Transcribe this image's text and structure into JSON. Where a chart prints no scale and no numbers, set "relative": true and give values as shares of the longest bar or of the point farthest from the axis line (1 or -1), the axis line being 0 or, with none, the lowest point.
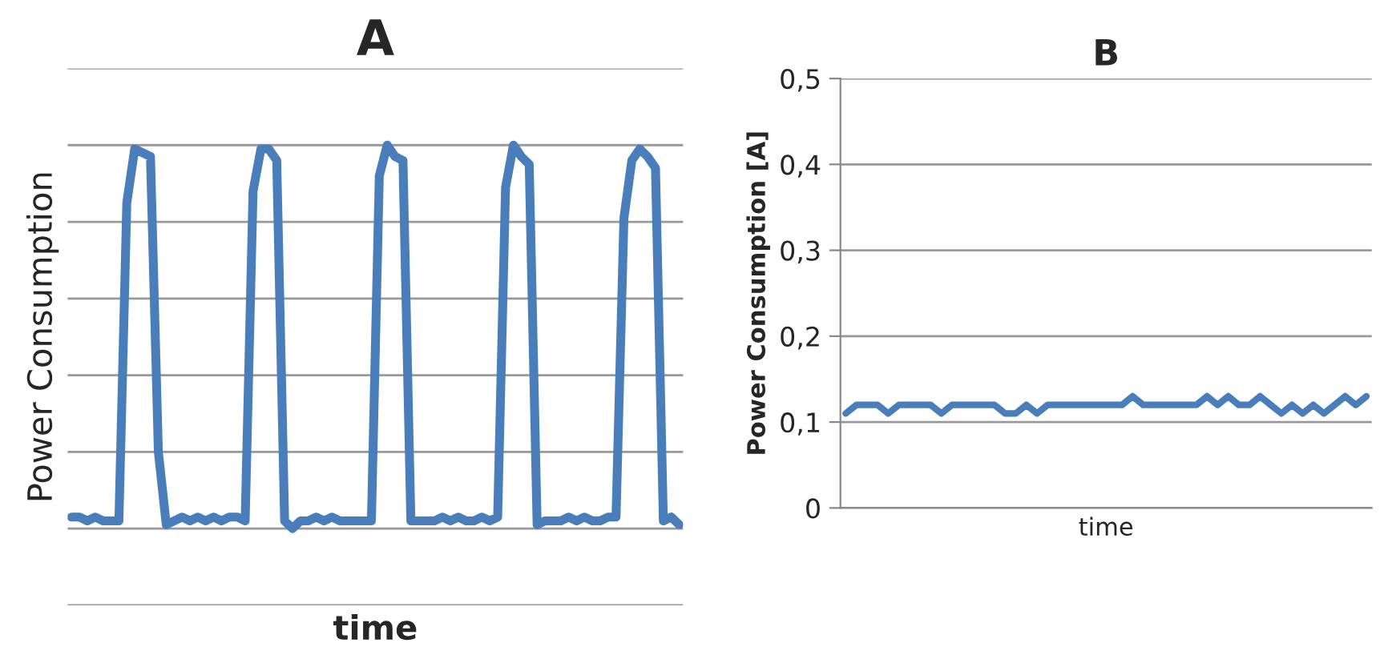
{
  "chart_data": [
    {
      "type": "line",
      "title": "A",
      "xlabel": "time",
      "ylabel": "Power Consumption",
      "relative": true,
      "grid": "y",
      "tick_labels": false,
      "categories": [
        null,
        null,
        null,
        null,
        null,
        null,
        null,
        null,
        null,
        null,
        null,
        null,
        null,
        null,
        null,
        null,
        null,
        null,
        null,
        null,
        null,
        null,
        null,
        null,
        null,
        null,
        null,
        null,
        null,
        null,
        null,
        null,
        null,
        null,
        null,
        null,
        null,
        null,
        null,
        null,
        null,
        null,
        null,
        null,
        null,
        null,
        null,
        null,
        null,
        null,
        null,
        null,
        null,
        null,
        null,
        null,
        null,
        null,
        null,
        null,
        null,
        null,
        null,
        null,
        null,
        null,
        null,
        null,
        null,
        null,
        null,
        null,
        null,
        null,
        null,
        null,
        null,
        null
      ],
      "series": [
        {
          "color": "#4a7ebb",
          "values": [
            0.03,
            0.03,
            0.02,
            0.03,
            0.02,
            0.02,
            0.02,
            0.85,
            0.99,
            0.98,
            0.97,
            0.2,
            0.01,
            0.02,
            0.03,
            0.02,
            0.03,
            0.02,
            0.03,
            0.02,
            0.03,
            0.03,
            0.02,
            0.88,
            0.99,
            0.99,
            0.96,
            0.02,
            0,
            0.02,
            0.02,
            0.03,
            0.02,
            0.03,
            0.02,
            0.02,
            0.02,
            0.02,
            0.02,
            0.92,
            1,
            0.97,
            0.96,
            0.02,
            0.02,
            0.02,
            0.02,
            0.03,
            0.02,
            0.03,
            0.02,
            0.02,
            0.03,
            0.02,
            0.03,
            0.89,
            1,
            0.97,
            0.95,
            0.01,
            0.02,
            0.02,
            0.02,
            0.03,
            0.02,
            0.03,
            0.02,
            0.02,
            0.03,
            0.03,
            0.81,
            0.96,
            0.99,
            0.97,
            0.94,
            0.02,
            0.03,
            0.01
          ]
        }
      ]
    },
    {
      "type": "line",
      "title": "B",
      "xlabel": "time",
      "ylabel": "Power Consumption [A]",
      "grid": "y",
      "tick_labels": "y",
      "ylim": [
        0,
        0.5
      ],
      "yticks": [
        0,
        {
          "value": 0.1,
          "label": "0,1"
        },
        {
          "value": 0.2,
          "label": "0,2"
        },
        {
          "value": 0.3,
          "label": "0,3"
        },
        {
          "value": 0.4,
          "label": "0,4"
        },
        {
          "value": 0.5,
          "label": "0,5"
        }
      ],
      "categories": [
        null,
        null,
        null,
        null,
        null,
        null,
        null,
        null,
        null,
        null,
        null,
        null,
        null,
        null,
        null,
        null,
        null,
        null,
        null,
        null,
        null,
        null,
        null,
        null,
        null,
        null,
        null,
        null,
        null,
        null,
        null,
        null,
        null,
        null,
        null,
        null,
        null,
        null,
        null,
        null,
        null,
        null,
        null,
        null,
        null,
        null,
        null,
        null,
        null,
        null
      ],
      "series": [
        {
          "color": "#4a7ebb",
          "values": [
            0.11,
            0.12,
            0.12,
            0.12,
            0.11,
            0.12,
            0.12,
            0.12,
            0.12,
            0.11,
            0.12,
            0.12,
            0.12,
            0.12,
            0.12,
            0.11,
            0.11,
            0.12,
            0.11,
            0.12,
            0.12,
            0.12,
            0.12,
            0.12,
            0.12,
            0.12,
            0.12,
            0.13,
            0.12,
            0.12,
            0.12,
            0.12,
            0.12,
            0.12,
            0.13,
            0.12,
            0.13,
            0.12,
            0.12,
            0.13,
            0.12,
            0.11,
            0.12,
            0.11,
            0.12,
            0.11,
            0.12,
            0.13,
            0.12,
            0.13
          ]
        }
      ]
    }
  ]
}
